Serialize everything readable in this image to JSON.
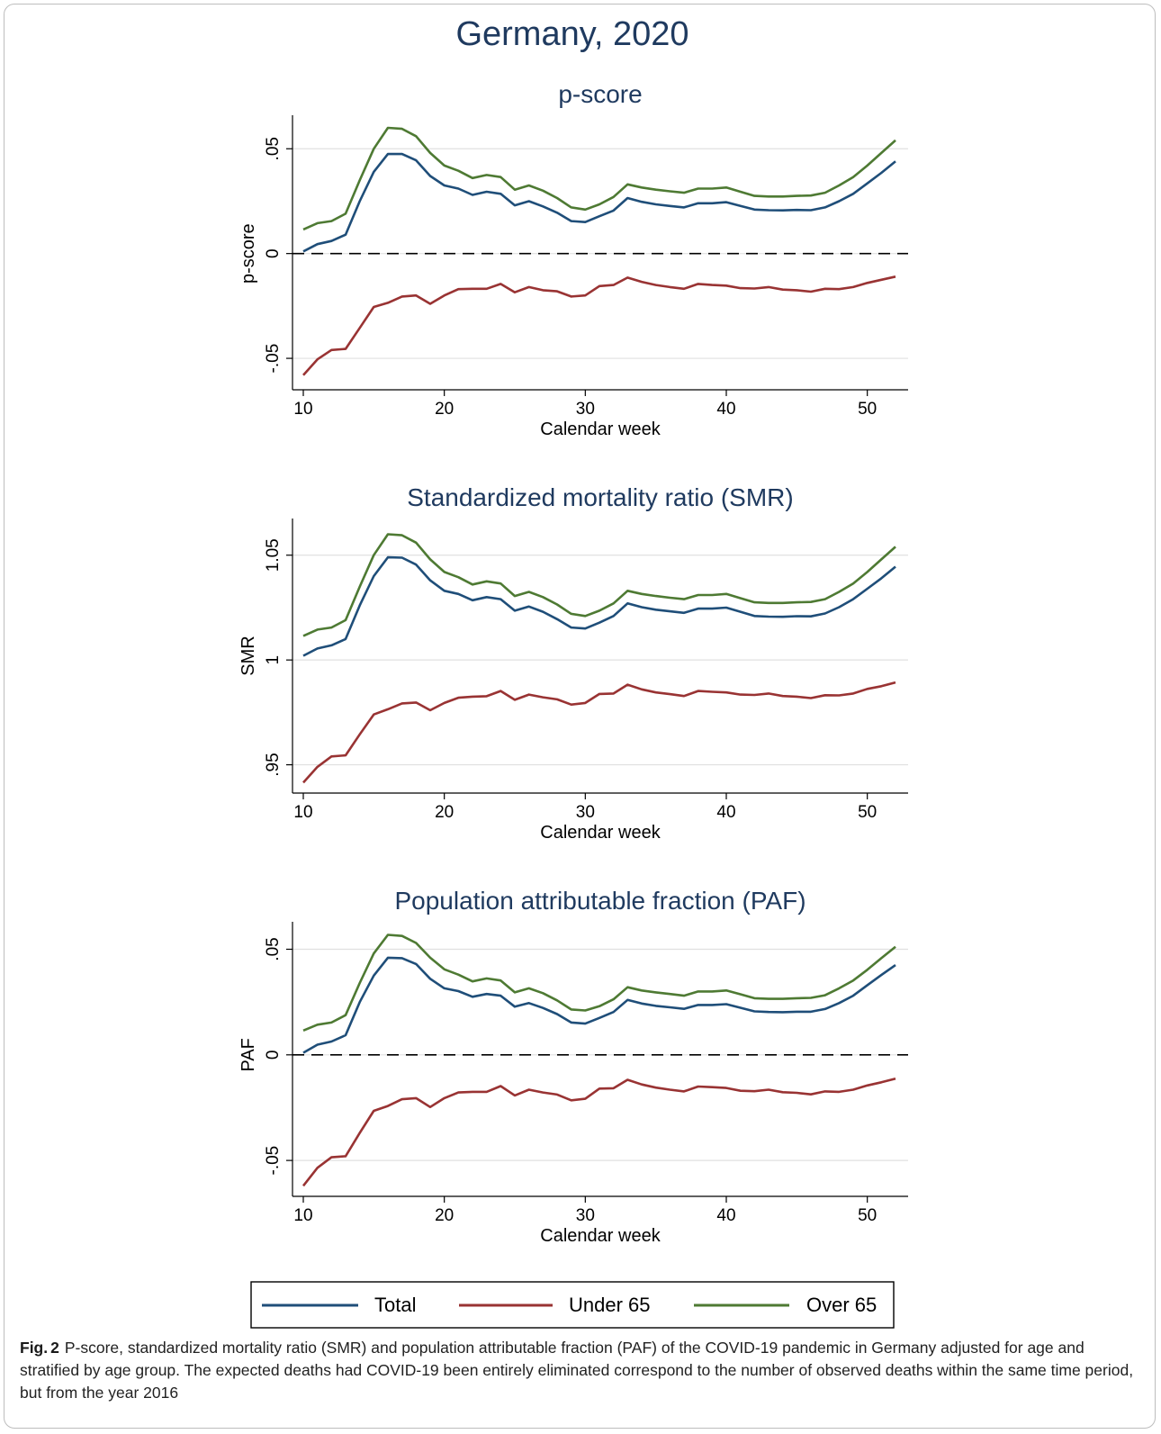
{
  "figure_title": "Germany, 2020",
  "colors": {
    "total": "#1f4e79",
    "under65": "#993333",
    "over65": "#4e7a33",
    "title": "#1f3a5f",
    "grid": "#e0e0e0"
  },
  "legend": {
    "placement": "bottom",
    "items": [
      {
        "key": "total",
        "label": "Total"
      },
      {
        "key": "under65",
        "label": "Under 65"
      },
      {
        "key": "over65",
        "label": "Over 65"
      }
    ]
  },
  "chart_data": [
    {
      "type": "line",
      "title": "p-score",
      "xlabel": "Calendar week",
      "ylabel": "p-score",
      "xlim": [
        10,
        52
      ],
      "ylim": [
        -0.065,
        0.066
      ],
      "xticks": [
        10,
        20,
        30,
        40,
        50
      ],
      "yticks": [
        {
          "v": -0.05,
          "label": "-.05"
        },
        {
          "v": 0,
          "label": "0"
        },
        {
          "v": 0.05,
          "label": ".05"
        }
      ],
      "reference_line": {
        "y": 0,
        "style": "dashed"
      },
      "grid": true,
      "x": [
        10,
        11,
        12,
        13,
        14,
        15,
        16,
        17,
        18,
        19,
        20,
        21,
        22,
        23,
        24,
        25,
        26,
        27,
        28,
        29,
        30,
        31,
        32,
        33,
        34,
        35,
        36,
        37,
        38,
        39,
        40,
        41,
        42,
        43,
        44,
        45,
        46,
        47,
        48,
        49,
        50,
        51,
        52
      ],
      "series": [
        {
          "name": "Over 65",
          "key": "over65",
          "values": [
            0.0115,
            0.0145,
            0.0155,
            0.019,
            0.035,
            0.05,
            0.06,
            0.0595,
            0.056,
            0.048,
            0.042,
            0.0395,
            0.036,
            0.0375,
            0.0365,
            0.0305,
            0.0325,
            0.03,
            0.0265,
            0.022,
            0.021,
            0.0235,
            0.027,
            0.033,
            0.0315,
            0.0305,
            0.0297,
            0.029,
            0.031,
            0.031,
            0.0315,
            0.0295,
            0.0275,
            0.0272,
            0.0272,
            0.0275,
            0.0277,
            0.029,
            0.0325,
            0.0365,
            0.042,
            0.048,
            0.054
          ]
        },
        {
          "name": "Total",
          "key": "total",
          "values": [
            0.001,
            0.0045,
            0.006,
            0.009,
            0.025,
            0.039,
            0.0475,
            0.0475,
            0.0445,
            0.037,
            0.0325,
            0.031,
            0.028,
            0.0295,
            0.0285,
            0.023,
            0.025,
            0.0225,
            0.0195,
            0.0155,
            0.015,
            0.0178,
            0.0205,
            0.0265,
            0.0247,
            0.0235,
            0.0227,
            0.022,
            0.024,
            0.024,
            0.0245,
            0.0227,
            0.021,
            0.0207,
            0.0206,
            0.0208,
            0.0207,
            0.022,
            0.025,
            0.0285,
            0.0335,
            0.0385,
            0.044
          ]
        },
        {
          "name": "Under 65",
          "key": "under65",
          "values": [
            -0.058,
            -0.0505,
            -0.046,
            -0.0455,
            -0.0355,
            -0.0255,
            -0.0235,
            -0.0205,
            -0.02,
            -0.024,
            -0.02,
            -0.017,
            -0.0168,
            -0.0168,
            -0.0145,
            -0.0185,
            -0.016,
            -0.0175,
            -0.018,
            -0.0205,
            -0.02,
            -0.0155,
            -0.015,
            -0.0115,
            -0.0135,
            -0.015,
            -0.016,
            -0.0168,
            -0.0145,
            -0.015,
            -0.0153,
            -0.0165,
            -0.0167,
            -0.016,
            -0.0172,
            -0.0175,
            -0.0182,
            -0.0168,
            -0.017,
            -0.016,
            -0.014,
            -0.0125,
            -0.011
          ]
        }
      ]
    },
    {
      "type": "line",
      "title": "Standardized mortality ratio (SMR)",
      "xlabel": "Calendar week",
      "ylabel": "SMR",
      "xlim": [
        10,
        52
      ],
      "ylim": [
        0.9365,
        1.0675
      ],
      "xticks": [
        10,
        20,
        30,
        40,
        50
      ],
      "yticks": [
        {
          "v": 0.95,
          "label": ".95"
        },
        {
          "v": 1,
          "label": "1"
        },
        {
          "v": 1.05,
          "label": "1.05"
        }
      ],
      "reference_line": null,
      "grid": true,
      "x": [
        10,
        11,
        12,
        13,
        14,
        15,
        16,
        17,
        18,
        19,
        20,
        21,
        22,
        23,
        24,
        25,
        26,
        27,
        28,
        29,
        30,
        31,
        32,
        33,
        34,
        35,
        36,
        37,
        38,
        39,
        40,
        41,
        42,
        43,
        44,
        45,
        46,
        47,
        48,
        49,
        50,
        51,
        52
      ],
      "series": [
        {
          "name": "Over 65",
          "key": "over65",
          "values": [
            1.0115,
            1.0145,
            1.0155,
            1.019,
            1.035,
            1.05,
            1.06,
            1.0595,
            1.056,
            1.048,
            1.042,
            1.0395,
            1.036,
            1.0375,
            1.0365,
            1.0305,
            1.0325,
            1.03,
            1.0265,
            1.022,
            1.021,
            1.0235,
            1.027,
            1.033,
            1.0315,
            1.0305,
            1.0297,
            1.029,
            1.031,
            1.031,
            1.0315,
            1.0295,
            1.0275,
            1.0272,
            1.0272,
            1.0275,
            1.0277,
            1.029,
            1.0325,
            1.0365,
            1.042,
            1.048,
            1.054
          ]
        },
        {
          "name": "Total",
          "key": "total",
          "values": [
            1.002,
            1.0055,
            1.007,
            1.01,
            1.026,
            1.04,
            1.049,
            1.0488,
            1.0455,
            1.038,
            1.033,
            1.0315,
            1.0285,
            1.03,
            1.029,
            1.0235,
            1.0255,
            1.023,
            1.0195,
            1.0155,
            1.015,
            1.0178,
            1.021,
            1.027,
            1.0252,
            1.024,
            1.0232,
            1.0225,
            1.0245,
            1.0245,
            1.025,
            1.023,
            1.021,
            1.0207,
            1.0206,
            1.0209,
            1.0208,
            1.0222,
            1.0252,
            1.029,
            1.034,
            1.039,
            1.0445
          ]
        },
        {
          "name": "Under 65",
          "key": "under65",
          "values": [
            0.9415,
            0.949,
            0.954,
            0.9545,
            0.9645,
            0.974,
            0.9765,
            0.9793,
            0.9797,
            0.976,
            0.9795,
            0.982,
            0.9825,
            0.9827,
            0.9852,
            0.981,
            0.9835,
            0.9822,
            0.9812,
            0.9787,
            0.9795,
            0.9838,
            0.984,
            0.9882,
            0.986,
            0.9845,
            0.9837,
            0.9828,
            0.9852,
            0.9848,
            0.9845,
            0.9835,
            0.9833,
            0.984,
            0.9828,
            0.9825,
            0.9818,
            0.9832,
            0.9831,
            0.984,
            0.9862,
            0.9875,
            0.9893
          ]
        }
      ]
    },
    {
      "type": "line",
      "title": "Population attributable fraction (PAF)",
      "xlabel": "Calendar week",
      "ylabel": "PAF",
      "xlim": [
        10,
        52
      ],
      "ylim": [
        -0.067,
        0.063
      ],
      "xticks": [
        10,
        20,
        30,
        40,
        50
      ],
      "yticks": [
        {
          "v": -0.05,
          "label": "-.05"
        },
        {
          "v": 0,
          "label": "0"
        },
        {
          "v": 0.05,
          "label": ".05"
        }
      ],
      "reference_line": {
        "y": 0,
        "style": "dashed"
      },
      "grid": true,
      "x": [
        10,
        11,
        12,
        13,
        14,
        15,
        16,
        17,
        18,
        19,
        20,
        21,
        22,
        23,
        24,
        25,
        26,
        27,
        28,
        29,
        30,
        31,
        32,
        33,
        34,
        35,
        36,
        37,
        38,
        39,
        40,
        41,
        42,
        43,
        44,
        45,
        46,
        47,
        48,
        49,
        50,
        51,
        52
      ],
      "series": [
        {
          "name": "Over 65",
          "key": "over65",
          "values": [
            0.0115,
            0.0143,
            0.0153,
            0.0188,
            0.034,
            0.048,
            0.0568,
            0.0563,
            0.053,
            0.046,
            0.0405,
            0.038,
            0.0348,
            0.0362,
            0.0352,
            0.0296,
            0.0315,
            0.0292,
            0.0258,
            0.0215,
            0.021,
            0.023,
            0.0263,
            0.032,
            0.0305,
            0.0296,
            0.0288,
            0.028,
            0.03,
            0.03,
            0.0305,
            0.0287,
            0.0268,
            0.0265,
            0.0265,
            0.0268,
            0.027,
            0.0282,
            0.0315,
            0.0352,
            0.0403,
            0.0458,
            0.0512
          ]
        },
        {
          "name": "Total",
          "key": "total",
          "values": [
            0.001,
            0.0048,
            0.0063,
            0.0093,
            0.025,
            0.0375,
            0.046,
            0.0458,
            0.043,
            0.036,
            0.0315,
            0.0302,
            0.0275,
            0.0288,
            0.028,
            0.0228,
            0.0245,
            0.0222,
            0.0193,
            0.0153,
            0.0148,
            0.0175,
            0.0203,
            0.026,
            0.0243,
            0.0232,
            0.0225,
            0.0218,
            0.0236,
            0.0236,
            0.024,
            0.0223,
            0.0206,
            0.0203,
            0.0202,
            0.0204,
            0.0204,
            0.0217,
            0.0245,
            0.028,
            0.033,
            0.0378,
            0.0425
          ]
        },
        {
          "name": "Under 65",
          "key": "under65",
          "values": [
            -0.062,
            -0.0535,
            -0.0485,
            -0.048,
            -0.037,
            -0.0265,
            -0.0242,
            -0.021,
            -0.0205,
            -0.0247,
            -0.0205,
            -0.0178,
            -0.0175,
            -0.0175,
            -0.0148,
            -0.0192,
            -0.0165,
            -0.0178,
            -0.0188,
            -0.0215,
            -0.0208,
            -0.016,
            -0.0158,
            -0.0118,
            -0.014,
            -0.0155,
            -0.0165,
            -0.0173,
            -0.015,
            -0.0153,
            -0.0157,
            -0.017,
            -0.0172,
            -0.0165,
            -0.0177,
            -0.018,
            -0.0187,
            -0.0173,
            -0.0175,
            -0.0165,
            -0.0145,
            -0.013,
            -0.0113
          ]
        }
      ]
    }
  ],
  "caption": {
    "label": "Fig.",
    "number": "2",
    "text": "P-score, standardized mortality ratio (SMR) and population attributable fraction (PAF) of the COVID-19 pandemic in Germany adjusted for age and stratified by age group. The expected deaths had COVID-19 been entirely eliminated correspond to the number of observed deaths within the same time period, but from the year 2016"
  }
}
